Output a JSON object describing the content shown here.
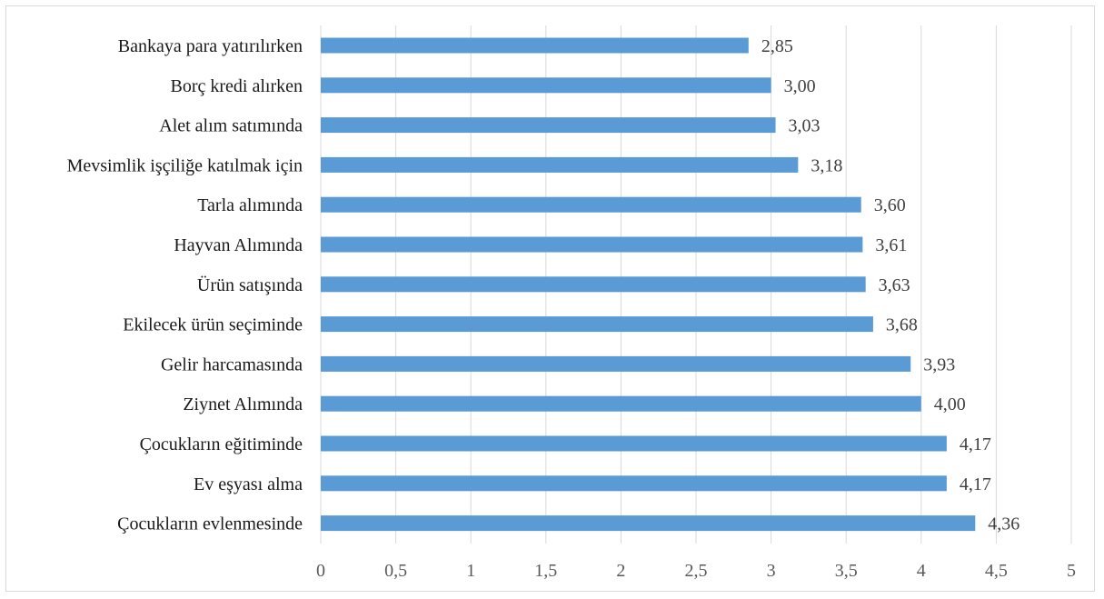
{
  "chart_data": {
    "type": "bar",
    "orientation": "horizontal",
    "categories": [
      "Bankaya para yatırılırken",
      "Borç kredi alırken",
      "Alet alım satımında",
      "Mevsimlik işçiliğe katılmak için",
      "Tarla alımında",
      "Hayvan Alımında",
      "Ürün satışında",
      "Ekilecek ürün seçiminde",
      "Gelir harcamasında",
      "Ziynet Alımında",
      "Çocukların eğitiminde",
      "Ev eşyası alma",
      "Çocukların evlenmesinde"
    ],
    "values": [
      2.85,
      3.0,
      3.03,
      3.18,
      3.6,
      3.61,
      3.63,
      3.68,
      3.93,
      4.0,
      4.17,
      4.17,
      4.36
    ],
    "value_labels": [
      "2,85",
      "3,00",
      "3,03",
      "3,18",
      "3,60",
      "3,61",
      "3,63",
      "3,68",
      "3,93",
      "4,00",
      "4,17",
      "4,17",
      "4,36"
    ],
    "xlim": [
      0,
      5
    ],
    "x_ticks": [
      0,
      0.5,
      1,
      1.5,
      2,
      2.5,
      3,
      3.5,
      4,
      4.5,
      5
    ],
    "x_tick_labels": [
      "0",
      "0,5",
      "1",
      "1,5",
      "2",
      "2,5",
      "3",
      "3,5",
      "4",
      "4,5",
      "5"
    ],
    "title": "",
    "xlabel": "",
    "ylabel": "",
    "grid": "vertical",
    "legend": "none",
    "bar_color": "#5b9bd5"
  }
}
